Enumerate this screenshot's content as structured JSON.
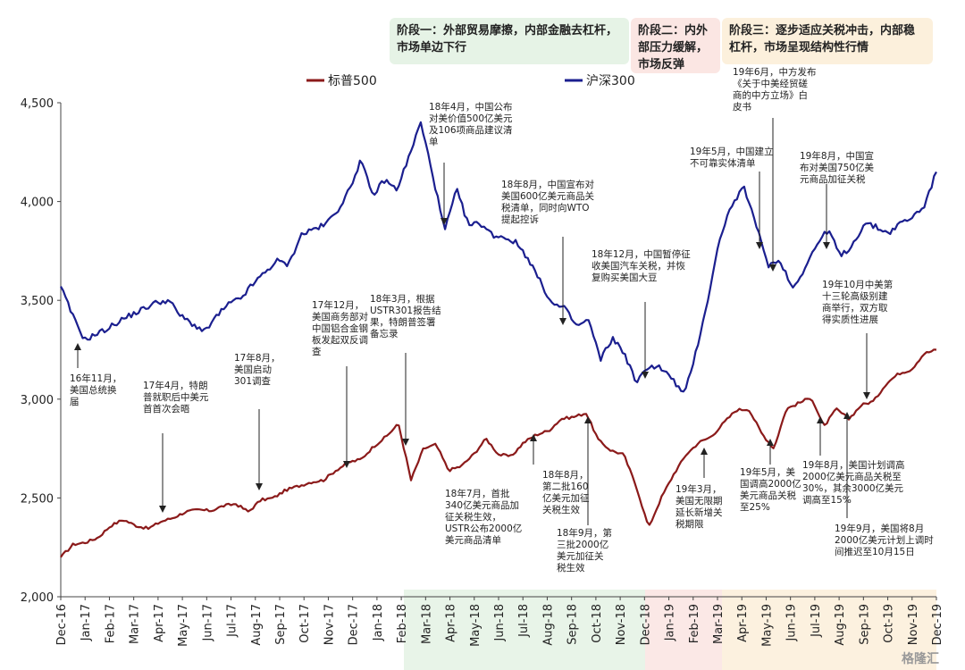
{
  "chart_data": {
    "type": "line",
    "x_ticks": [
      "Dec-16",
      "Jan-17",
      "Feb-17",
      "Mar-17",
      "Apr-17",
      "May-17",
      "Jun-17",
      "Jul-17",
      "Aug-17",
      "Sep-17",
      "Oct-17",
      "Nov-17",
      "Dec-17",
      "Jan-18",
      "Feb-18",
      "Mar-18",
      "Apr-18",
      "May-18",
      "Jun-18",
      "Jul-18",
      "Aug-18",
      "Sep-18",
      "Oct-18",
      "Nov-18",
      "Dec-18",
      "Jan-19",
      "Feb-19",
      "Mar-19",
      "Apr-19",
      "May-19",
      "Jun-19",
      "Jul-19",
      "Aug-19",
      "Sep-19",
      "Oct-19",
      "Nov-19",
      "Dec-19"
    ],
    "y_ticks": [
      "2,000",
      "2,500",
      "3,000",
      "3,500",
      "4,000",
      "4,500"
    ],
    "ylim": [
      2000,
      4500
    ],
    "series": [
      {
        "name": "标普500",
        "color": "#8B1A1A",
        "values": [
          2200,
          2265,
          2275,
          2300,
          2360,
          2390,
          2360,
          2345,
          2380,
          2400,
          2430,
          2440,
          2435,
          2460,
          2470,
          2430,
          2490,
          2500,
          2540,
          2560,
          2580,
          2590,
          2640,
          2680,
          2695,
          2760,
          2810,
          2875,
          2590,
          2750,
          2770,
          2640,
          2660,
          2720,
          2800,
          2720,
          2710,
          2780,
          2820,
          2840,
          2900,
          2910,
          2930,
          2790,
          2740,
          2720,
          2560,
          2350,
          2500,
          2620,
          2720,
          2780,
          2810,
          2880,
          2945,
          2950,
          2830,
          2750,
          2950,
          2980,
          3010,
          2860,
          2950,
          2900,
          2970,
          2990,
          3080,
          3130,
          3150,
          3230,
          3250
        ]
      },
      {
        "name": "沪深300",
        "color": "#1B1F8F",
        "values": [
          3570,
          3420,
          3300,
          3330,
          3360,
          3400,
          3430,
          3460,
          3490,
          3500,
          3420,
          3380,
          3340,
          3420,
          3480,
          3510,
          3580,
          3640,
          3700,
          3680,
          3830,
          3860,
          3880,
          3950,
          4050,
          4210,
          4030,
          4110,
          4060,
          4220,
          4400,
          4140,
          3850,
          4060,
          3880,
          3890,
          3830,
          3820,
          3790,
          3710,
          3590,
          3480,
          3460,
          3370,
          3400,
          3200,
          3310,
          3230,
          3080,
          3170,
          3160,
          3100,
          3020,
          3250,
          3520,
          3830,
          3990,
          4070,
          3870,
          3680,
          3700,
          3560,
          3660,
          3780,
          3860,
          3720,
          3780,
          3890,
          3870,
          3840,
          3890,
          3920,
          3980,
          4150
        ]
      }
    ],
    "stages": [
      {
        "text": [
          "阶段一：外部贸易摩擦，内部金融去杠杆，",
          "市场单边下行"
        ],
        "color": "#E6F3E6"
      },
      {
        "text": [
          "阶段二：内外",
          "部压力缓解，",
          "市场反弹"
        ],
        "color": "#FBE6E3"
      },
      {
        "text": [
          "阶段三：逐步适应关税冲击，内部稳",
          "杠杆，市场呈现结构性行情"
        ],
        "color": "#FCF0DC"
      }
    ],
    "annotations": [
      {
        "lines": [
          "16年11月，",
          "美国总统换",
          "届"
        ]
      },
      {
        "lines": [
          "17年4月，特朗",
          "普就职后中美元",
          "首首次会晤"
        ]
      },
      {
        "lines": [
          "17年8月，",
          "美国启动",
          "301调查"
        ]
      },
      {
        "lines": [
          "17年12月，",
          "美国商务部对",
          "中国铝合金钢",
          "板发起双反调",
          "查"
        ]
      },
      {
        "lines": [
          "18年3月，根据",
          "USTR301报告结",
          "果，特朗普签署",
          "备忘录"
        ]
      },
      {
        "lines": [
          "18年4月，中国公布",
          "对美价值500亿美元",
          "及106项商品建议清",
          "单"
        ]
      },
      {
        "lines": [
          "18年8月，中国宣布对",
          "美国600亿美元商品关",
          "税清单，同时向WTO",
          "提起控诉"
        ]
      },
      {
        "lines": [
          "18年12月，中国暂停征",
          "收美国汽车关税，并恢",
          "复购买美国大豆"
        ]
      },
      {
        "lines": [
          "19年5月，中国建立",
          "不可靠实体清单"
        ]
      },
      {
        "lines": [
          "19年6月，中方发布",
          "《关于中美经贸磋",
          "商的中方立场》白",
          "皮书"
        ]
      },
      {
        "lines": [
          "19年8月，中国宣",
          "布对美国750亿美",
          "元商品加征关税"
        ]
      },
      {
        "lines": [
          "19年10月中美第",
          "十三轮高级别建",
          "商举行，双方取",
          "得实质性进展"
        ]
      },
      {
        "lines": [
          "18年7月，首批",
          "340亿美元商品加",
          "征关税生效，",
          "USTR公布2000亿",
          "美元商品清单"
        ]
      },
      {
        "lines": [
          "18年8月，",
          "第二批160",
          "亿美元加征",
          "关税生效"
        ]
      },
      {
        "lines": [
          "18年9月，第",
          "三批2000亿",
          "美元加征关",
          "税生效"
        ]
      },
      {
        "lines": [
          "19年3月，",
          "美国无限期",
          "延长新增关",
          "税期限"
        ]
      },
      {
        "lines": [
          "19年5月，美",
          "国调高2000亿",
          "美元商品关税",
          "至25%"
        ]
      },
      {
        "lines": [
          "19年8月，美国计划调高",
          "2000亿美元商品关税至",
          "30%，其余3000亿美元",
          "调高至15%"
        ]
      },
      {
        "lines": [
          "19年9月，美国将8月",
          "2000亿美元计划上调时",
          "间推迟至10月15日"
        ]
      }
    ],
    "watermark": "格隆汇"
  }
}
